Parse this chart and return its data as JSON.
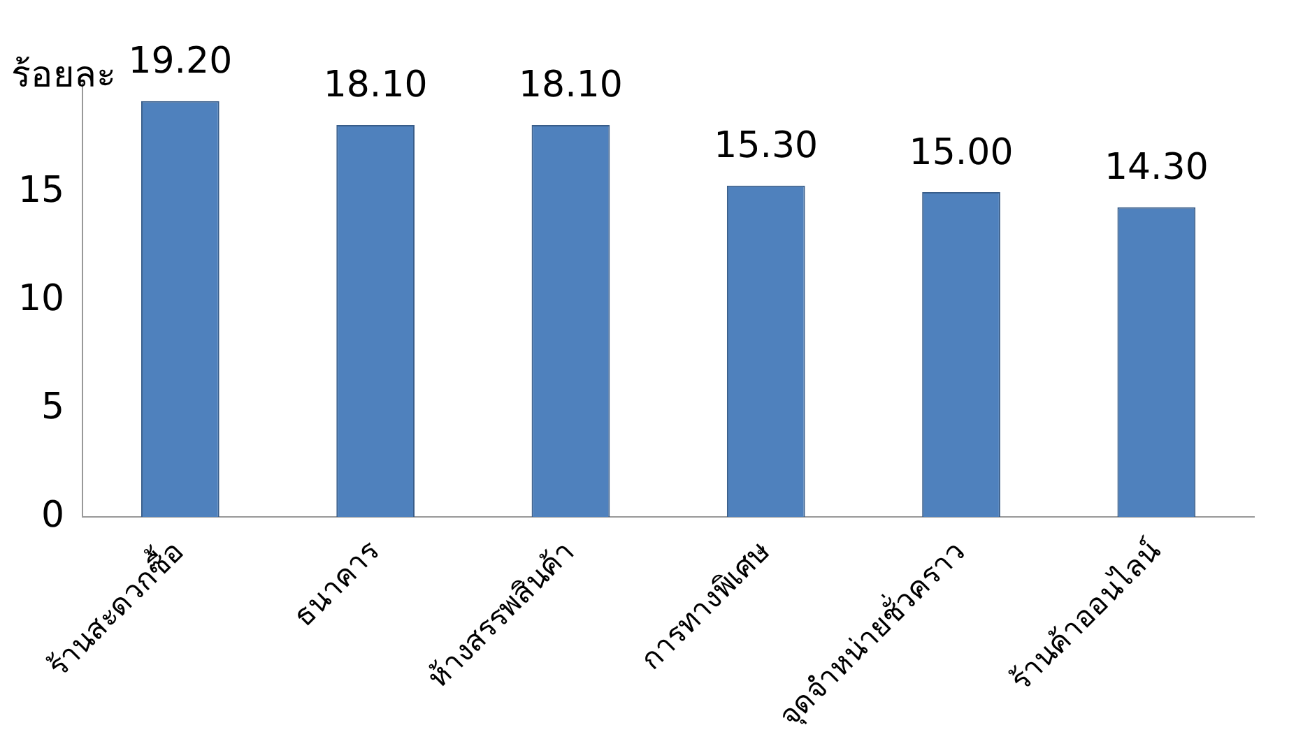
{
  "chart_data": {
    "type": "bar",
    "ylabel": "ร้อยละ",
    "categories": [
      "ร้านสะดวกซื้อ",
      "ธนาคาร",
      "ห้างสรรพสินค้า",
      "การทางพิเศษ",
      "จุดจำหน่ายชั่วคราว",
      "ร้านค้าออนไลน์"
    ],
    "values": [
      19.2,
      18.1,
      18.1,
      15.3,
      15.0,
      14.3
    ],
    "value_labels": [
      "19.20",
      "18.10",
      "18.10",
      "15.30",
      "15.00",
      "14.30"
    ],
    "color": "#4f81bd",
    "ylim": [
      0,
      20
    ],
    "yticks": [
      0,
      5,
      10,
      15
    ],
    "grid": false,
    "legend": false
  }
}
